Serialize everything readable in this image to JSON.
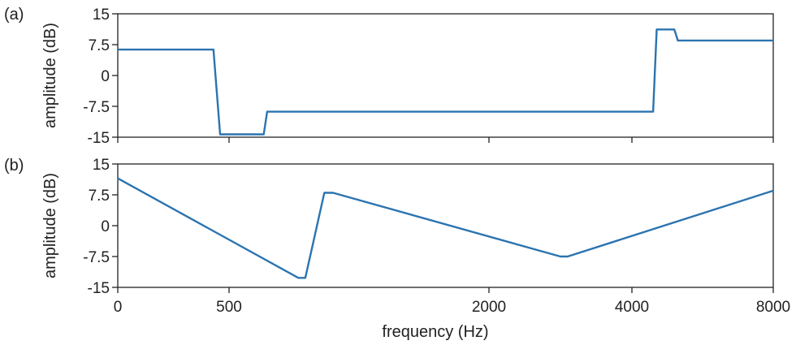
{
  "chart_data": [
    {
      "type": "line",
      "panel_label": "(a)",
      "xlabel": "",
      "ylabel": "amplitude (dB)",
      "ylim": [
        -15,
        15
      ],
      "yticks": [
        "15",
        "7.5",
        "0",
        "-7.5",
        "-15"
      ],
      "x_axis": "shared frequency axis (Hz), nonuniform scale",
      "grid": false,
      "color": "#2b74b0",
      "x": [
        0,
        430,
        460,
        700,
        720,
        4600,
        4700,
        5200,
        5300,
        8000
      ],
      "y": [
        6.3,
        6.3,
        -14.3,
        -14.3,
        -8.8,
        -8.8,
        11.2,
        11.2,
        8.5,
        8.5
      ]
    },
    {
      "type": "line",
      "panel_label": "(b)",
      "xlabel": "frequency (Hz)",
      "ylabel": "amplitude (dB)",
      "ylim": [
        -15,
        15
      ],
      "yticks": [
        "15",
        "7.5",
        "0",
        "-7.5",
        "-15"
      ],
      "xticks": [
        "0",
        "500",
        "2000",
        "4000",
        "8000"
      ],
      "grid": false,
      "color": "#2b74b0",
      "x": [
        0,
        900,
        940,
        1050,
        1100,
        3000,
        3100,
        8000
      ],
      "y": [
        11.5,
        -12.7,
        -12.7,
        8.0,
        8.0,
        -7.5,
        -7.5,
        8.5
      ]
    }
  ]
}
